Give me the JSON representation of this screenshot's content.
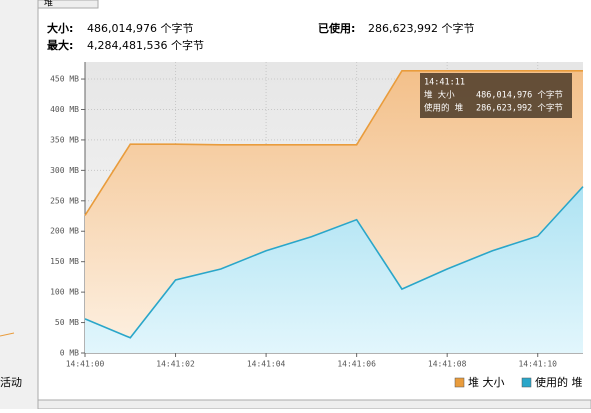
{
  "tab": "堆",
  "side_label": "活动",
  "header": {
    "size_label": "大小:",
    "size_value": "486,014,976 个字节",
    "used_label": "已使用:",
    "used_value": "286,623,992 个字节",
    "max_label": "最大:",
    "max_value": "4,284,481,536 个字节"
  },
  "tooltip": {
    "time": "14:41:11",
    "size_name": "堆 大小",
    "size_value": "486,014,976 个字节",
    "used_name": "使用的 堆",
    "used_value": "286,623,992 个字节"
  },
  "chart_data": {
    "type": "area",
    "x": [
      "14:41:00",
      "14:41:01",
      "14:41:02",
      "14:41:03",
      "14:41:04",
      "14:41:05",
      "14:41:06",
      "14:41:07",
      "14:41:08",
      "14:41:09",
      "14:41:10",
      "14:41:11"
    ],
    "series": [
      {
        "name": "堆 大小",
        "color": "#e99c3c",
        "values": [
          226,
          343,
          343,
          342,
          342,
          342,
          342,
          463.5,
          463.5,
          463.5,
          463.5,
          463.5
        ]
      },
      {
        "name": "使用的 堆",
        "color": "#2aa6c9",
        "values": [
          56,
          25,
          120,
          138,
          168,
          191,
          219,
          105,
          138,
          168,
          192,
          273.3
        ]
      }
    ],
    "xlim": [
      "14:41:00",
      "14:41:11"
    ],
    "xticks": [
      "14:41:00",
      "14:41:02",
      "14:41:04",
      "14:41:06",
      "14:41:08",
      "14:41:10"
    ],
    "ylim": [
      0,
      478
    ],
    "yticks": [
      {
        "value": 0,
        "label": "0 MB"
      },
      {
        "value": 50,
        "label": "50 MB"
      },
      {
        "value": 100,
        "label": "100 MB"
      },
      {
        "value": 150,
        "label": "150 MB"
      },
      {
        "value": 200,
        "label": "200 MB"
      },
      {
        "value": 250,
        "label": "250 MB"
      },
      {
        "value": 300,
        "label": "300 MB"
      },
      {
        "value": 350,
        "label": "350 MB"
      },
      {
        "value": 400,
        "label": "400 MB"
      },
      {
        "value": 450,
        "label": "450 MB"
      }
    ],
    "grid": true
  }
}
